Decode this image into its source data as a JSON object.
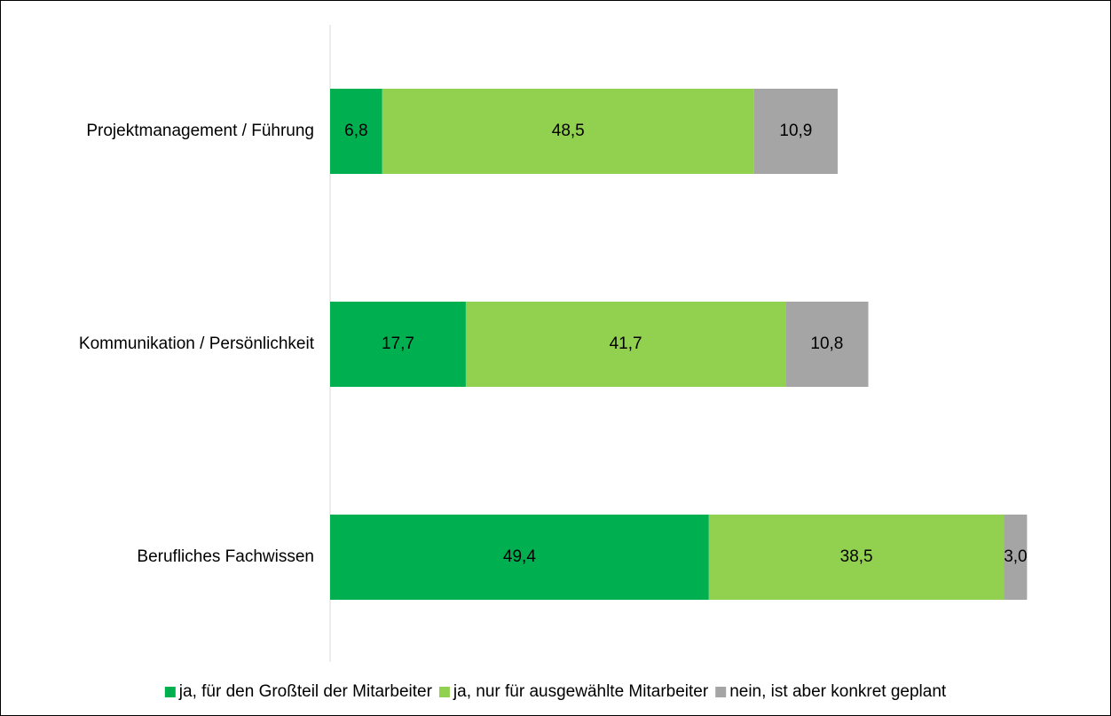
{
  "chart_data": {
    "type": "bar",
    "orientation": "horizontal",
    "stacked": true,
    "categories": [
      "Projektmanagement / Führung",
      "Kommunikation / Persönlichkeit",
      "Berufliches Fachwissen"
    ],
    "series": [
      {
        "name": "ja, für den Großteil der Mitarbeiter",
        "color": "#00b050",
        "values": [
          6.8,
          17.7,
          49.4
        ],
        "value_labels": [
          "6,8",
          "17,7",
          "49,4"
        ]
      },
      {
        "name": "ja, nur für ausgewählte Mitarbeiter",
        "color": "#92d050",
        "values": [
          48.5,
          41.7,
          38.5
        ],
        "value_labels": [
          "48,5",
          "41,7",
          "38,5"
        ]
      },
      {
        "name": "nein, ist aber konkret geplant",
        "color": "#a5a5a5",
        "values": [
          10.9,
          10.8,
          3.0
        ],
        "value_labels": [
          "10,9",
          "10,8",
          "3,0"
        ]
      }
    ],
    "xlim": [
      0,
      100
    ],
    "legend": "bottom"
  }
}
